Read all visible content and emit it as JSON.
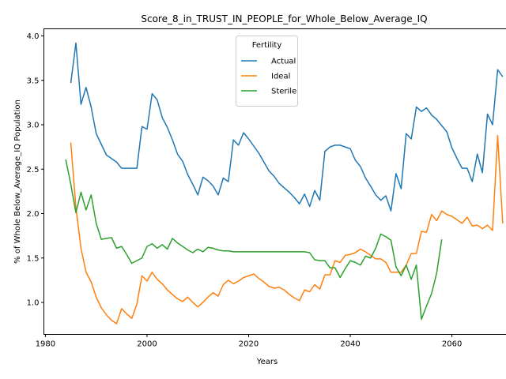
{
  "chart_data": {
    "type": "line",
    "title": "Score_8_in_TRUST_IN_PEOPLE_for_Whole_Below_Average_IQ",
    "xlabel": "Years",
    "ylabel": "% of Whole Below_Average_IQ Population",
    "xlim": [
      1979.7,
      2074.3
    ],
    "ylim": [
      0.64,
      4.08
    ],
    "xticks": [
      1980,
      2000,
      2020,
      2040,
      2060
    ],
    "yticks": [
      1.0,
      1.5,
      2.0,
      2.5,
      3.0,
      3.5,
      4.0
    ],
    "xtick_labels": [
      "1980",
      "2000",
      "2020",
      "2040",
      "2060"
    ],
    "ytick_labels": [
      "1.0",
      "1.5",
      "2.0",
      "2.5",
      "3.0",
      "3.5",
      "4.0"
    ],
    "grid": false,
    "legend": {
      "title": "Fertility",
      "position": "top-center"
    },
    "series": [
      {
        "name": "Actual",
        "color": "#1f77b4",
        "points": [
          [
            1985,
            3.47
          ],
          [
            1986,
            3.92
          ],
          [
            1987,
            3.23
          ],
          [
            1988,
            3.42
          ],
          [
            1989,
            3.2
          ],
          [
            1990,
            2.9
          ],
          [
            1991,
            2.78
          ],
          [
            1992,
            2.66
          ],
          [
            1993,
            2.62
          ],
          [
            1994,
            2.58
          ],
          [
            1995,
            2.51
          ],
          [
            1996,
            2.51
          ],
          [
            1997,
            2.51
          ],
          [
            1998,
            2.51
          ],
          [
            1999,
            2.98
          ],
          [
            2000,
            2.95
          ],
          [
            2001,
            3.35
          ],
          [
            2002,
            3.28
          ],
          [
            2003,
            3.08
          ],
          [
            2004,
            2.97
          ],
          [
            2005,
            2.83
          ],
          [
            2006,
            2.67
          ],
          [
            2007,
            2.59
          ],
          [
            2008,
            2.44
          ],
          [
            2009,
            2.33
          ],
          [
            2010,
            2.21
          ],
          [
            2011,
            2.41
          ],
          [
            2012,
            2.37
          ],
          [
            2013,
            2.31
          ],
          [
            2014,
            2.21
          ],
          [
            2015,
            2.4
          ],
          [
            2016,
            2.36
          ],
          [
            2017,
            2.83
          ],
          [
            2018,
            2.77
          ],
          [
            2019,
            2.91
          ],
          [
            2020,
            2.84
          ],
          [
            2021,
            2.76
          ],
          [
            2022,
            2.68
          ],
          [
            2023,
            2.58
          ],
          [
            2024,
            2.48
          ],
          [
            2025,
            2.42
          ],
          [
            2026,
            2.34
          ],
          [
            2027,
            2.29
          ],
          [
            2028,
            2.24
          ],
          [
            2029,
            2.18
          ],
          [
            2030,
            2.11
          ],
          [
            2031,
            2.22
          ],
          [
            2032,
            2.08
          ],
          [
            2033,
            2.26
          ],
          [
            2034,
            2.15
          ],
          [
            2035,
            2.7
          ],
          [
            2036,
            2.75
          ],
          [
            2037,
            2.77
          ],
          [
            2038,
            2.77
          ],
          [
            2039,
            2.75
          ],
          [
            2040,
            2.73
          ],
          [
            2041,
            2.6
          ],
          [
            2042,
            2.53
          ],
          [
            2043,
            2.4
          ],
          [
            2044,
            2.31
          ],
          [
            2045,
            2.21
          ],
          [
            2046,
            2.15
          ],
          [
            2047,
            2.2
          ],
          [
            2048,
            2.03
          ],
          [
            2049,
            2.45
          ],
          [
            2050,
            2.28
          ],
          [
            2051,
            2.9
          ],
          [
            2052,
            2.84
          ],
          [
            2053,
            3.2
          ],
          [
            2054,
            3.15
          ],
          [
            2055,
            3.19
          ],
          [
            2056,
            3.11
          ],
          [
            2057,
            3.06
          ],
          [
            2058,
            2.99
          ],
          [
            2059,
            2.92
          ],
          [
            2060,
            2.74
          ],
          [
            2061,
            2.62
          ],
          [
            2062,
            2.51
          ],
          [
            2063,
            2.51
          ],
          [
            2064,
            2.36
          ],
          [
            2065,
            2.67
          ],
          [
            2066,
            2.46
          ],
          [
            2067,
            3.12
          ],
          [
            2068,
            3.0
          ],
          [
            2069,
            3.62
          ],
          [
            2070,
            3.54
          ]
        ]
      },
      {
        "name": "Ideal",
        "color": "#ff7f0e",
        "points": [
          [
            1985,
            2.8
          ],
          [
            1986,
            2.07
          ],
          [
            1987,
            1.61
          ],
          [
            1988,
            1.34
          ],
          [
            1989,
            1.23
          ],
          [
            1990,
            1.06
          ],
          [
            1991,
            0.94
          ],
          [
            1992,
            0.86
          ],
          [
            1993,
            0.8
          ],
          [
            1994,
            0.76
          ],
          [
            1995,
            0.93
          ],
          [
            1996,
            0.87
          ],
          [
            1997,
            0.82
          ],
          [
            1998,
            0.98
          ],
          [
            1999,
            1.3
          ],
          [
            2000,
            1.24
          ],
          [
            2001,
            1.34
          ],
          [
            2002,
            1.26
          ],
          [
            2003,
            1.21
          ],
          [
            2004,
            1.14
          ],
          [
            2005,
            1.09
          ],
          [
            2006,
            1.04
          ],
          [
            2007,
            1.01
          ],
          [
            2008,
            1.06
          ],
          [
            2009,
            1.0
          ],
          [
            2010,
            0.95
          ],
          [
            2011,
            1.0
          ],
          [
            2012,
            1.06
          ],
          [
            2013,
            1.11
          ],
          [
            2014,
            1.07
          ],
          [
            2015,
            1.2
          ],
          [
            2016,
            1.25
          ],
          [
            2017,
            1.21
          ],
          [
            2018,
            1.24
          ],
          [
            2019,
            1.28
          ],
          [
            2020,
            1.3
          ],
          [
            2021,
            1.32
          ],
          [
            2022,
            1.27
          ],
          [
            2023,
            1.23
          ],
          [
            2024,
            1.18
          ],
          [
            2025,
            1.16
          ],
          [
            2026,
            1.17
          ],
          [
            2027,
            1.14
          ],
          [
            2028,
            1.09
          ],
          [
            2029,
            1.05
          ],
          [
            2030,
            1.02
          ],
          [
            2031,
            1.14
          ],
          [
            2032,
            1.12
          ],
          [
            2033,
            1.2
          ],
          [
            2034,
            1.15
          ],
          [
            2035,
            1.31
          ],
          [
            2036,
            1.31
          ],
          [
            2037,
            1.47
          ],
          [
            2038,
            1.45
          ],
          [
            2039,
            1.53
          ],
          [
            2040,
            1.54
          ],
          [
            2041,
            1.56
          ],
          [
            2042,
            1.6
          ],
          [
            2043,
            1.57
          ],
          [
            2044,
            1.53
          ],
          [
            2045,
            1.49
          ],
          [
            2046,
            1.49
          ],
          [
            2047,
            1.45
          ],
          [
            2048,
            1.34
          ],
          [
            2049,
            1.34
          ],
          [
            2050,
            1.34
          ],
          [
            2051,
            1.42
          ],
          [
            2052,
            1.55
          ],
          [
            2053,
            1.55
          ],
          [
            2054,
            1.8
          ],
          [
            2055,
            1.79
          ],
          [
            2056,
            1.99
          ],
          [
            2057,
            1.92
          ],
          [
            2058,
            2.03
          ],
          [
            2059,
            1.99
          ],
          [
            2060,
            1.97
          ],
          [
            2061,
            1.93
          ],
          [
            2062,
            1.89
          ],
          [
            2063,
            1.96
          ],
          [
            2064,
            1.86
          ],
          [
            2065,
            1.87
          ],
          [
            2066,
            1.83
          ],
          [
            2067,
            1.87
          ],
          [
            2068,
            1.81
          ],
          [
            2069,
            2.88
          ],
          [
            2070,
            1.89
          ]
        ]
      },
      {
        "name": "Sterile",
        "color": "#2ca02c",
        "points": [
          [
            1984,
            2.61
          ],
          [
            1985,
            2.33
          ],
          [
            1986,
            2.01
          ],
          [
            1987,
            2.24
          ],
          [
            1988,
            2.04
          ],
          [
            1989,
            2.21
          ],
          [
            1990,
            1.89
          ],
          [
            1991,
            1.71
          ],
          [
            1992,
            1.72
          ],
          [
            1993,
            1.73
          ],
          [
            1994,
            1.61
          ],
          [
            1995,
            1.63
          ],
          [
            1996,
            1.54
          ],
          [
            1997,
            1.44
          ],
          [
            1998,
            1.47
          ],
          [
            1999,
            1.5
          ],
          [
            2000,
            1.63
          ],
          [
            2001,
            1.66
          ],
          [
            2002,
            1.61
          ],
          [
            2003,
            1.65
          ],
          [
            2004,
            1.6
          ],
          [
            2005,
            1.72
          ],
          [
            2006,
            1.67
          ],
          [
            2007,
            1.63
          ],
          [
            2008,
            1.59
          ],
          [
            2009,
            1.56
          ],
          [
            2010,
            1.6
          ],
          [
            2011,
            1.57
          ],
          [
            2012,
            1.62
          ],
          [
            2013,
            1.61
          ],
          [
            2014,
            1.59
          ],
          [
            2015,
            1.58
          ],
          [
            2016,
            1.58
          ],
          [
            2017,
            1.57
          ],
          [
            2018,
            1.57
          ],
          [
            2019,
            1.57
          ],
          [
            2020,
            1.57
          ],
          [
            2021,
            1.57
          ],
          [
            2022,
            1.57
          ],
          [
            2023,
            1.57
          ],
          [
            2024,
            1.57
          ],
          [
            2025,
            1.57
          ],
          [
            2026,
            1.57
          ],
          [
            2027,
            1.57
          ],
          [
            2028,
            1.57
          ],
          [
            2029,
            1.57
          ],
          [
            2030,
            1.57
          ],
          [
            2031,
            1.57
          ],
          [
            2032,
            1.56
          ],
          [
            2033,
            1.48
          ],
          [
            2034,
            1.47
          ],
          [
            2035,
            1.47
          ],
          [
            2036,
            1.39
          ],
          [
            2037,
            1.39
          ],
          [
            2038,
            1.28
          ],
          [
            2039,
            1.38
          ],
          [
            2040,
            1.47
          ],
          [
            2041,
            1.45
          ],
          [
            2042,
            1.42
          ],
          [
            2043,
            1.52
          ],
          [
            2044,
            1.5
          ],
          [
            2045,
            1.61
          ],
          [
            2046,
            1.77
          ],
          [
            2047,
            1.74
          ],
          [
            2048,
            1.7
          ],
          [
            2049,
            1.4
          ],
          [
            2050,
            1.3
          ],
          [
            2051,
            1.42
          ],
          [
            2052,
            1.26
          ],
          [
            2053,
            1.42
          ],
          [
            2054,
            0.81
          ],
          [
            2055,
            0.96
          ],
          [
            2056,
            1.1
          ],
          [
            2057,
            1.33
          ],
          [
            2058,
            1.71
          ]
        ]
      }
    ]
  }
}
